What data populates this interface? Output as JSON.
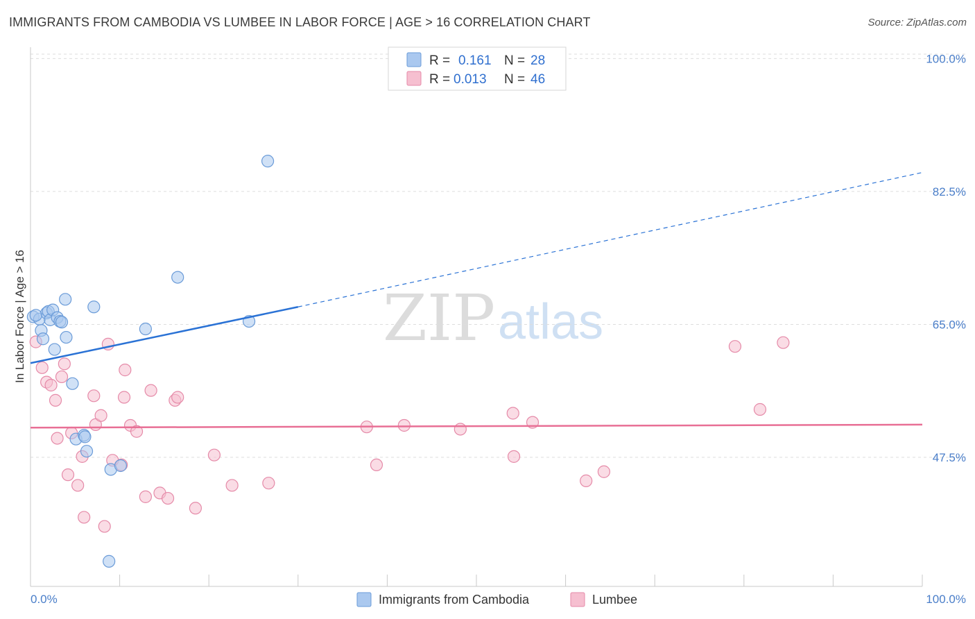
{
  "title": "IMMIGRANTS FROM CAMBODIA VS LUMBEE IN LABOR FORCE | AGE > 16 CORRELATION CHART",
  "source": "Source: ZipAtlas.com",
  "watermark": {
    "zip": "ZIP",
    "atlas": "atlas"
  },
  "colors": {
    "blue_fill": "#aac8ef",
    "blue_stroke": "#6a9bd8",
    "blue_line": "#2a72d5",
    "pink_fill": "#f6bfd0",
    "pink_stroke": "#e58aa8",
    "pink_line": "#e86f95",
    "axis_text": "#4a7ec9",
    "grid": "#dddddd"
  },
  "legend": {
    "r_label": "R =",
    "n_label": "N =",
    "series": [
      {
        "r": "0.161",
        "n": "28"
      },
      {
        "r": "0.013",
        "n": "46"
      }
    ]
  },
  "chart_data": {
    "type": "scatter",
    "title": "IMMIGRANTS FROM CAMBODIA VS LUMBEE IN LABOR FORCE | AGE > 16 CORRELATION CHART",
    "xlabel": "",
    "ylabel": "In Labor Force | Age > 16",
    "xlim": [
      0,
      100
    ],
    "ylim": [
      30.5,
      101.5
    ],
    "x_tick_labels": [
      "0.0%",
      "100.0%"
    ],
    "y_ticks": [
      47.5,
      65.0,
      82.5,
      100.0
    ],
    "y_tick_labels": [
      "47.5%",
      "65.0%",
      "82.5%",
      "100.0%"
    ],
    "series": [
      {
        "name": "Immigrants from Cambodia",
        "color": "blue",
        "trend": {
          "x0": 0,
          "y0": 59.9,
          "x1": 30,
          "y1": 67.3,
          "dashed_to_x": 100,
          "dashed_to_y": 85.0
        },
        "points": [
          [
            0.3,
            66.0
          ],
          [
            1.0,
            65.7
          ],
          [
            1.2,
            64.2
          ],
          [
            1.4,
            63.1
          ],
          [
            1.8,
            66.5
          ],
          [
            2.0,
            66.7
          ],
          [
            2.2,
            65.6
          ],
          [
            2.5,
            66.9
          ],
          [
            2.7,
            61.7
          ],
          [
            3.0,
            65.9
          ],
          [
            3.3,
            65.4
          ],
          [
            3.5,
            65.3
          ],
          [
            3.9,
            68.3
          ],
          [
            4.0,
            63.3
          ],
          [
            4.7,
            57.2
          ],
          [
            5.1,
            49.9
          ],
          [
            6.0,
            50.4
          ],
          [
            6.3,
            48.3
          ],
          [
            7.1,
            67.3
          ],
          [
            9.0,
            45.9
          ],
          [
            10.1,
            46.4
          ],
          [
            12.9,
            64.4
          ],
          [
            16.5,
            71.2
          ],
          [
            24.5,
            65.4
          ],
          [
            26.6,
            86.5
          ],
          [
            8.8,
            33.8
          ],
          [
            6.1,
            50.2
          ],
          [
            0.6,
            66.2
          ]
        ]
      },
      {
        "name": "Lumbee",
        "color": "pink",
        "trend": {
          "x0": 0,
          "y0": 51.4,
          "x1": 100,
          "y1": 51.8
        },
        "points": [
          [
            0.6,
            62.7
          ],
          [
            1.3,
            59.3
          ],
          [
            1.8,
            57.4
          ],
          [
            2.3,
            57.0
          ],
          [
            2.8,
            55.0
          ],
          [
            3.5,
            58.1
          ],
          [
            3.8,
            59.8
          ],
          [
            4.2,
            45.2
          ],
          [
            4.6,
            50.7
          ],
          [
            5.3,
            43.8
          ],
          [
            5.8,
            47.6
          ],
          [
            6.0,
            39.6
          ],
          [
            7.1,
            55.6
          ],
          [
            7.3,
            51.8
          ],
          [
            7.9,
            53.0
          ],
          [
            8.3,
            38.4
          ],
          [
            8.7,
            62.4
          ],
          [
            9.2,
            47.1
          ],
          [
            10.2,
            46.5
          ],
          [
            10.5,
            55.4
          ],
          [
            10.6,
            59.0
          ],
          [
            11.2,
            51.7
          ],
          [
            11.9,
            50.9
          ],
          [
            12.9,
            42.3
          ],
          [
            13.5,
            56.3
          ],
          [
            14.5,
            42.8
          ],
          [
            15.4,
            42.1
          ],
          [
            16.2,
            55.0
          ],
          [
            16.5,
            55.4
          ],
          [
            18.5,
            40.8
          ],
          [
            20.6,
            47.8
          ],
          [
            22.6,
            43.8
          ],
          [
            26.7,
            44.1
          ],
          [
            37.7,
            51.5
          ],
          [
            38.8,
            46.5
          ],
          [
            41.9,
            51.7
          ],
          [
            48.2,
            51.2
          ],
          [
            54.1,
            53.3
          ],
          [
            54.2,
            47.6
          ],
          [
            56.3,
            52.1
          ],
          [
            62.3,
            44.4
          ],
          [
            64.3,
            45.6
          ],
          [
            79.0,
            62.1
          ],
          [
            81.8,
            53.8
          ],
          [
            84.4,
            62.6
          ],
          [
            3.0,
            50.0
          ]
        ]
      }
    ]
  },
  "bottom_legend": [
    {
      "label": "Immigrants from Cambodia"
    },
    {
      "label": "Lumbee"
    }
  ]
}
